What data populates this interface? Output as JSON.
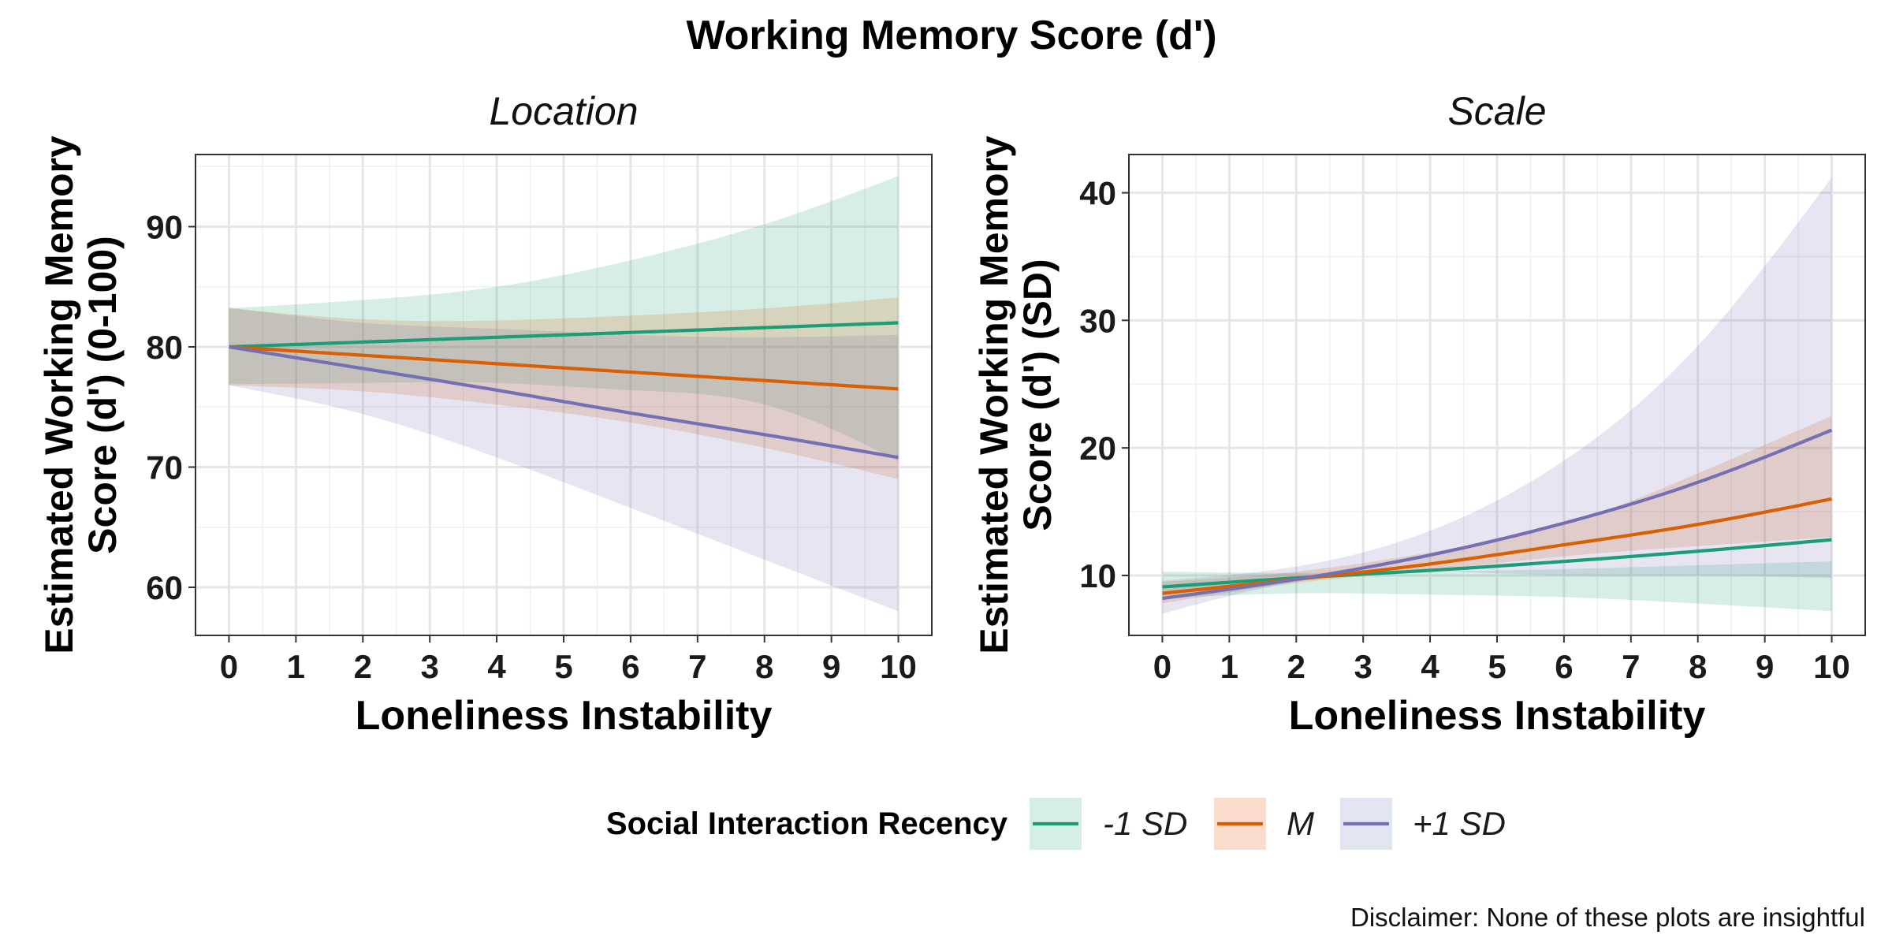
{
  "title": "Working Memory Score (d')",
  "caption": "Disclaimer: None of these plots are insightful",
  "legend": {
    "title": "Social Interaction Recency",
    "position": "bottom",
    "items": [
      {
        "label": "-1 SD",
        "color": "#1b9e77",
        "fill": "#d6efe6"
      },
      {
        "label": "M",
        "color": "#d95f02",
        "fill": "#fbdccc"
      },
      {
        "label": "+1 SD",
        "color": "#7570b3",
        "fill": "#e1e5f2"
      }
    ]
  },
  "chart_data": [
    {
      "type": "line",
      "facet": "Location",
      "xlabel": "Loneliness Instability",
      "ylabel": "Estimated Working Memory Score (d') (0-100)",
      "ylabel_lines": [
        "Estimated Working Memory",
        "Score (d') (0-100)"
      ],
      "xlim": [
        -0.5,
        10.5
      ],
      "ylim": [
        56,
        96
      ],
      "xticks": [
        0,
        1,
        2,
        3,
        4,
        5,
        6,
        7,
        8,
        9,
        10
      ],
      "yticks": [
        60,
        70,
        80,
        90
      ],
      "grid": true,
      "x": [
        0,
        2,
        4,
        6,
        8,
        10
      ],
      "series": [
        {
          "name": "-1 SD",
          "values": [
            80.0,
            80.4,
            80.8,
            81.2,
            81.6,
            82.0
          ],
          "lower": [
            76.9,
            77.0,
            77.0,
            76.4,
            75.2,
            70.5
          ],
          "upper": [
            83.2,
            83.9,
            85.0,
            87.2,
            90.2,
            94.2
          ]
        },
        {
          "name": "M",
          "values": [
            80.0,
            79.3,
            78.6,
            77.9,
            77.2,
            76.5
          ],
          "lower": [
            76.8,
            76.3,
            75.2,
            73.7,
            71.6,
            69.0
          ],
          "upper": [
            83.2,
            82.3,
            82.2,
            82.6,
            83.2,
            84.1
          ]
        },
        {
          "name": "+1 SD",
          "values": [
            80.0,
            78.2,
            76.4,
            74.5,
            72.7,
            70.8
          ],
          "lower": [
            76.8,
            74.4,
            70.8,
            66.6,
            62.3,
            58.0
          ],
          "upper": [
            83.3,
            82.0,
            81.5,
            81.0,
            80.8,
            81.0
          ]
        }
      ]
    },
    {
      "type": "line",
      "facet": "Scale",
      "xlabel": "Loneliness Instability",
      "ylabel": "Estimated Working Memory Score (d') (SD)",
      "ylabel_lines": [
        "Estimated Working Memory",
        "Score (d') (SD)"
      ],
      "xlim": [
        -0.5,
        10.5
      ],
      "ylim": [
        5.3,
        43
      ],
      "xticks": [
        0,
        1,
        2,
        3,
        4,
        5,
        6,
        7,
        8,
        9,
        10
      ],
      "yticks": [
        10,
        20,
        30,
        40
      ],
      "grid": true,
      "x": [
        0,
        2,
        4,
        6,
        8,
        10
      ],
      "series": [
        {
          "name": "-1 SD",
          "values": [
            9.1,
            9.8,
            10.4,
            11.1,
            11.9,
            12.8
          ],
          "lower": [
            8.2,
            8.6,
            8.5,
            8.3,
            7.8,
            7.2
          ],
          "upper": [
            10.3,
            10.2,
            10.3,
            10.5,
            10.8,
            11.1
          ]
        },
        {
          "name": "M",
          "values": [
            8.6,
            9.7,
            10.9,
            12.4,
            14.0,
            16.0
          ],
          "lower": [
            7.8,
            9.4,
            10.4,
            11.5,
            12.3,
            13.0
          ],
          "upper": [
            9.5,
            10.3,
            11.8,
            14.0,
            18.0,
            22.5
          ]
        },
        {
          "name": "+1 SD",
          "values": [
            8.2,
            9.7,
            11.6,
            14.1,
            17.3,
            21.4
          ],
          "lower": [
            7.0,
            9.5,
            10.3,
            10.0,
            10.0,
            9.8
          ],
          "upper": [
            9.6,
            10.7,
            13.5,
            19.0,
            28.0,
            41.2
          ]
        }
      ]
    }
  ]
}
